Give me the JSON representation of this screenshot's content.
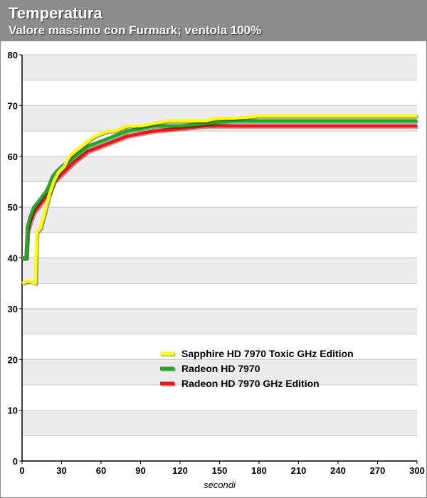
{
  "chart_data": {
    "type": "line",
    "title": "Temperatura",
    "subtitle": "Valore massimo con Furmark; ventola 100%",
    "xlabel": "secondi",
    "ylabel": "",
    "xlim": [
      0,
      300
    ],
    "ylim": [
      0,
      80
    ],
    "xticks": [
      "0",
      "30",
      "60",
      "90",
      "120",
      "150",
      "180",
      "210",
      "240",
      "270",
      "300"
    ],
    "yticks": [
      "0",
      "10",
      "20",
      "30",
      "40",
      "50",
      "60",
      "70",
      "80"
    ],
    "grid": true,
    "legend_position": "bottom-center",
    "series": [
      {
        "name": "Sapphire HD 7970 Toxic GHz Edition",
        "color": "#ffff00",
        "points": [
          [
            0,
            35
          ],
          [
            5,
            35.5
          ],
          [
            10,
            35
          ],
          [
            11,
            45
          ],
          [
            14,
            46
          ],
          [
            17,
            49
          ],
          [
            20,
            52
          ],
          [
            24,
            55
          ],
          [
            28,
            57
          ],
          [
            32,
            58
          ],
          [
            36,
            60
          ],
          [
            40,
            61
          ],
          [
            45,
            62
          ],
          [
            50,
            63
          ],
          [
            55,
            64
          ],
          [
            60,
            64.5
          ],
          [
            65,
            65
          ],
          [
            70,
            65
          ],
          [
            80,
            66
          ],
          [
            90,
            66
          ],
          [
            100,
            66.5
          ],
          [
            110,
            67
          ],
          [
            140,
            67
          ],
          [
            147,
            67.5
          ],
          [
            160,
            67.5
          ],
          [
            180,
            68
          ],
          [
            210,
            68
          ],
          [
            240,
            68
          ],
          [
            270,
            68
          ],
          [
            300,
            68
          ]
        ]
      },
      {
        "name": "Radeon HD 7970",
        "color": "#22aa22",
        "points": [
          [
            0,
            40
          ],
          [
            3,
            40
          ],
          [
            4,
            46
          ],
          [
            6,
            48
          ],
          [
            9,
            50
          ],
          [
            12,
            51
          ],
          [
            15,
            52
          ],
          [
            18,
            53
          ],
          [
            20,
            54
          ],
          [
            23,
            56
          ],
          [
            26,
            57
          ],
          [
            30,
            58
          ],
          [
            35,
            59
          ],
          [
            40,
            60
          ],
          [
            45,
            61
          ],
          [
            50,
            62
          ],
          [
            55,
            62.5
          ],
          [
            60,
            63
          ],
          [
            70,
            64
          ],
          [
            80,
            65
          ],
          [
            90,
            65.5
          ],
          [
            100,
            66
          ],
          [
            120,
            66
          ],
          [
            140,
            66.5
          ],
          [
            160,
            67
          ],
          [
            180,
            67
          ],
          [
            210,
            67
          ],
          [
            240,
            67
          ],
          [
            270,
            67
          ],
          [
            300,
            67
          ]
        ]
      },
      {
        "name": "Radeon HD 7970 GHz Edition",
        "color": "#ff1111",
        "points": [
          [
            0,
            40
          ],
          [
            3,
            40
          ],
          [
            4,
            45
          ],
          [
            6,
            47
          ],
          [
            9,
            49
          ],
          [
            12,
            50
          ],
          [
            15,
            51
          ],
          [
            18,
            52
          ],
          [
            21,
            53
          ],
          [
            24,
            55
          ],
          [
            28,
            56
          ],
          [
            32,
            57
          ],
          [
            36,
            58
          ],
          [
            40,
            59
          ],
          [
            45,
            60
          ],
          [
            50,
            61
          ],
          [
            55,
            61.5
          ],
          [
            60,
            62
          ],
          [
            70,
            63
          ],
          [
            80,
            64
          ],
          [
            90,
            64.5
          ],
          [
            100,
            65
          ],
          [
            120,
            65.5
          ],
          [
            140,
            66
          ],
          [
            160,
            66
          ],
          [
            180,
            66
          ],
          [
            210,
            66
          ],
          [
            240,
            66
          ],
          [
            270,
            66
          ],
          [
            300,
            66
          ]
        ]
      }
    ]
  }
}
